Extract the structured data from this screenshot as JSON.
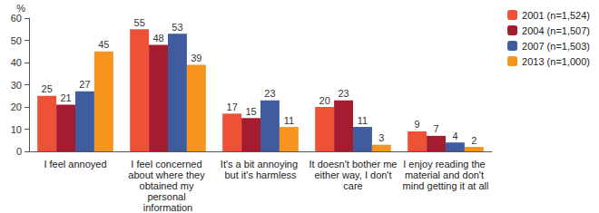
{
  "chart_data": {
    "type": "bar",
    "ylabel": "%",
    "categories": [
      "I feel annoyed",
      "I feel concerned about where they obtained my personal information",
      "It's a bit annoying but it's harmless",
      "It doesn't bother me either way, I don't care",
      "I enjoy reading the material and don't mind getting it at all"
    ],
    "series": [
      {
        "name": "2001 (n=1,524)",
        "color": "#ef5136",
        "values": [
          25,
          55,
          17,
          20,
          9
        ]
      },
      {
        "name": "2004 (n=1,507)",
        "color": "#a51c30",
        "values": [
          21,
          48,
          15,
          23,
          7
        ]
      },
      {
        "name": "2007 (n=1,503)",
        "color": "#3f5c9e",
        "values": [
          27,
          53,
          23,
          11,
          4
        ]
      },
      {
        "name": "2013 (n=1,000)",
        "color": "#f7941d",
        "values": [
          45,
          39,
          11,
          3,
          2
        ]
      }
    ],
    "ylim": [
      0,
      60
    ],
    "yticks": [
      0,
      10,
      20,
      30,
      40,
      50,
      60
    ],
    "grid": false,
    "legend": "top-right",
    "data_labels": true
  }
}
